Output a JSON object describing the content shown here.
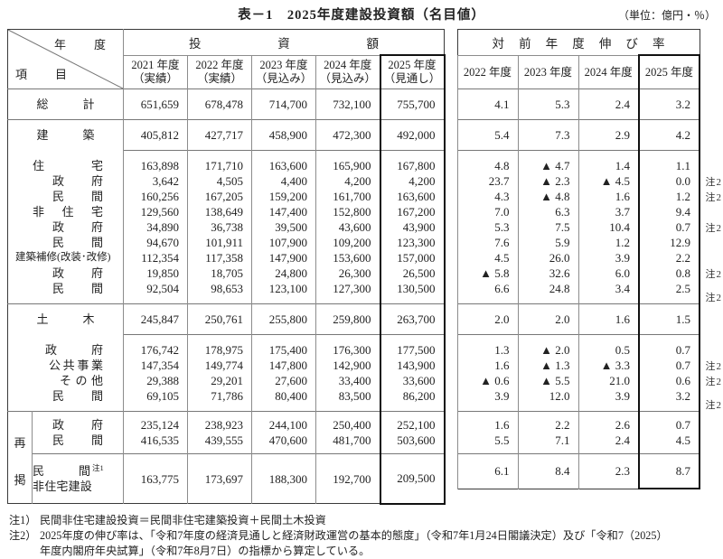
{
  "title": "表－1　2025年度建設投資額（名目値）",
  "unit_note": "（単位：億円・％）",
  "left_table": {
    "corner_top": "年　度",
    "corner_bottom": "項　目",
    "group_header": "投資額",
    "col_headers": [
      [
        "2021 年度",
        "（実績）"
      ],
      [
        "2022 年度",
        "（実績）"
      ],
      [
        "2023 年度",
        "（見込み）"
      ],
      [
        "2024 年度",
        "（見込み）"
      ],
      [
        "2025 年度",
        "（見通し）"
      ]
    ]
  },
  "right_table": {
    "group_header": "対前年度伸び率",
    "col_headers": [
      "2022 年度",
      "2023 年度",
      "2024 年度",
      "2025 年度"
    ]
  },
  "rekei_label": "再掲",
  "rows": [
    {
      "label": "総計",
      "amounts": [
        "651,659",
        "678,478",
        "714,700",
        "732,100",
        "755,700"
      ],
      "rates": [
        "4.1",
        "5.3",
        "2.4",
        "3.2"
      ],
      "note": ""
    },
    {
      "label": "建築",
      "amounts": [
        "405,812",
        "427,717",
        "458,900",
        "472,300",
        "492,000"
      ],
      "rates": [
        "5.4",
        "7.3",
        "2.9",
        "4.2"
      ],
      "note": ""
    },
    {
      "label": "住宅",
      "amounts": [
        "163,898",
        "171,710",
        "163,600",
        "165,900",
        "167,800"
      ],
      "rates": [
        "4.8",
        "▲ 4.7",
        "1.4",
        "1.1"
      ],
      "note": ""
    },
    {
      "label": "政府",
      "amounts": [
        "3,642",
        "4,505",
        "4,400",
        "4,200",
        "4,200"
      ],
      "rates": [
        "23.7",
        "▲ 2.3",
        "▲ 4.5",
        "0.0"
      ],
      "note": "注2"
    },
    {
      "label": "民間",
      "amounts": [
        "160,256",
        "167,205",
        "159,200",
        "161,700",
        "163,600"
      ],
      "rates": [
        "4.3",
        "▲ 4.8",
        "1.6",
        "1.2"
      ],
      "note": "注2"
    },
    {
      "label": "非住宅",
      "amounts": [
        "129,560",
        "138,649",
        "147,400",
        "152,800",
        "167,200"
      ],
      "rates": [
        "7.0",
        "6.3",
        "3.7",
        "9.4"
      ],
      "note": ""
    },
    {
      "label": "政府",
      "amounts": [
        "34,890",
        "36,738",
        "39,500",
        "43,600",
        "43,900"
      ],
      "rates": [
        "5.3",
        "7.5",
        "10.4",
        "0.7"
      ],
      "note": "注2"
    },
    {
      "label": "民間",
      "amounts": [
        "94,670",
        "101,911",
        "107,900",
        "109,200",
        "123,300"
      ],
      "rates": [
        "7.6",
        "5.9",
        "1.2",
        "12.9"
      ],
      "note": ""
    },
    {
      "label": "建築補修(改装･改修)",
      "amounts": [
        "112,354",
        "117,358",
        "147,900",
        "153,600",
        "157,000"
      ],
      "rates": [
        "4.5",
        "26.0",
        "3.9",
        "2.2"
      ],
      "note": ""
    },
    {
      "label": "政府",
      "amounts": [
        "19,850",
        "18,705",
        "24,800",
        "26,300",
        "26,500"
      ],
      "rates": [
        "▲ 5.8",
        "32.6",
        "6.0",
        "0.8"
      ],
      "note": "注2"
    },
    {
      "label": "民間",
      "amounts": [
        "92,504",
        "98,653",
        "123,100",
        "127,300",
        "130,500"
      ],
      "rates": [
        "6.6",
        "24.8",
        "3.4",
        "2.5"
      ],
      "note": "注2"
    },
    {
      "label": "土木",
      "amounts": [
        "245,847",
        "250,761",
        "255,800",
        "259,800",
        "263,700"
      ],
      "rates": [
        "2.0",
        "2.0",
        "1.6",
        "1.5"
      ],
      "note": ""
    },
    {
      "label": "政府",
      "amounts": [
        "176,742",
        "178,975",
        "175,400",
        "176,300",
        "177,500"
      ],
      "rates": [
        "1.3",
        "▲ 2.0",
        "0.5",
        "0.7"
      ],
      "note": ""
    },
    {
      "label": "公共事業",
      "amounts": [
        "147,354",
        "149,774",
        "147,800",
        "142,900",
        "143,900"
      ],
      "rates": [
        "1.6",
        "▲ 1.3",
        "▲ 3.3",
        "0.7"
      ],
      "note": "注2"
    },
    {
      "label": "その他",
      "amounts": [
        "29,388",
        "29,201",
        "27,600",
        "33,400",
        "33,600"
      ],
      "rates": [
        "▲ 0.6",
        "▲ 5.5",
        "21.0",
        "0.6"
      ],
      "note": "注2"
    },
    {
      "label": "民間",
      "amounts": [
        "69,105",
        "71,786",
        "80,400",
        "83,500",
        "86,200"
      ],
      "rates": [
        "3.9",
        "12.0",
        "3.9",
        "3.2"
      ],
      "note": "注2"
    },
    {
      "label": "政府",
      "amounts": [
        "235,124",
        "238,923",
        "244,100",
        "250,400",
        "252,100"
      ],
      "rates": [
        "1.6",
        "2.2",
        "2.6",
        "0.7"
      ],
      "note": ""
    },
    {
      "label": "民間",
      "amounts": [
        "416,535",
        "439,555",
        "470,600",
        "481,700",
        "503,600"
      ],
      "rates": [
        "5.5",
        "7.1",
        "2.4",
        "4.5"
      ],
      "note": ""
    },
    {
      "label": "民間",
      "label_sup": "注1",
      "label2": "非住宅建設",
      "amounts": [
        "163,775",
        "173,697",
        "188,300",
        "192,700",
        "209,500"
      ],
      "rates": [
        "6.1",
        "8.4",
        "2.3",
        "8.7"
      ],
      "note": ""
    }
  ],
  "footnotes": {
    "fn1_label": "注1）",
    "fn1_text": "民間非住宅建設投資＝民間非住宅建築投資＋民間土木投資",
    "fn2_label": "注2）",
    "fn2_line1": "2025年度の伸び率は、「令和7年度の経済見通しと経済財政運営の基本的態度」（令和7年1月24日閣議決定）及び「令和7（2025）",
    "fn2_line2": "年度内閣府年央試算」（令和7年8月7日）の指標から算定している。"
  }
}
